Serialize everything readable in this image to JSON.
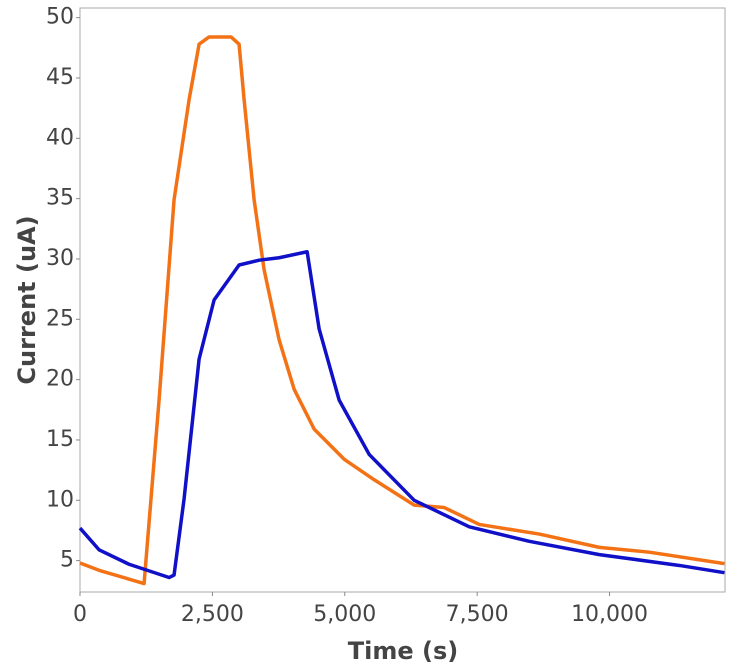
{
  "chart_data": {
    "type": "line",
    "xlabel": "Time (s)",
    "ylabel": "Current (uA)",
    "xlim": [
      0,
      12180
    ],
    "ylim": [
      2.4,
      50.8
    ],
    "xticks": [
      0,
      {
        "value": 2500,
        "label": "2,500"
      },
      {
        "value": 5000,
        "label": "5,000"
      },
      {
        "value": 7500,
        "label": "7,500"
      },
      {
        "value": 10000,
        "label": "10,000"
      }
    ],
    "yticks": [
      5,
      10,
      15,
      20,
      25,
      30,
      35,
      40,
      45,
      50
    ],
    "grid": false,
    "series": [
      {
        "color": "#f47216",
        "x": [
          0,
          359,
          1210,
          1493,
          1776,
          2060,
          2249,
          2438,
          2853,
          3004,
          3099,
          3288,
          3477,
          3760,
          4044,
          4422,
          4989,
          5556,
          6311,
          6878,
          7540,
          8673,
          9807,
          10752,
          12170
        ],
        "values": [
          4.8,
          4.2,
          3.1,
          18.3,
          34.9,
          43.2,
          47.8,
          48.4,
          48.4,
          47.8,
          43.2,
          34.9,
          29.1,
          23.3,
          19.2,
          15.9,
          13.4,
          11.7,
          9.6,
          9.4,
          8.0,
          7.2,
          6.1,
          5.7,
          4.75
        ]
      },
      {
        "color": "#1010c8",
        "x": [
          0,
          359,
          926,
          1682,
          1776,
          1965,
          2249,
          2532,
          3004,
          3382,
          3760,
          4289,
          4516,
          4894,
          5461,
          6311,
          7351,
          8484,
          9807,
          11319,
          12170
        ],
        "values": [
          7.7,
          5.9,
          4.7,
          3.6,
          3.8,
          10.1,
          21.7,
          26.6,
          29.5,
          29.9,
          30.1,
          30.6,
          24.2,
          18.3,
          13.8,
          10.0,
          7.8,
          6.6,
          5.5,
          4.6,
          4.0
        ]
      }
    ]
  }
}
